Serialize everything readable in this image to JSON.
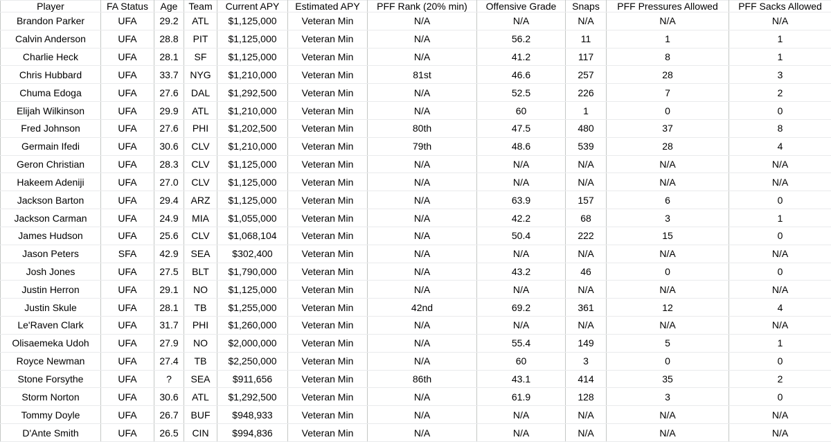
{
  "table": {
    "columns": [
      "Player",
      "FA Status",
      "Age",
      "Team",
      "Current APY",
      "Estimated APY",
      "PFF Rank (20% min)",
      "Offensive Grade",
      "Snaps",
      "PFF Pressures Allowed",
      "PFF Sacks Allowed"
    ],
    "rows": [
      [
        "Brandon Parker",
        "UFA",
        "29.2",
        "ATL",
        "$1,125,000",
        "Veteran Min",
        "N/A",
        "N/A",
        "N/A",
        "N/A",
        "N/A"
      ],
      [
        "Calvin Anderson",
        "UFA",
        "28.8",
        "PIT",
        "$1,125,000",
        "Veteran Min",
        "N/A",
        "56.2",
        "11",
        "1",
        "1"
      ],
      [
        "Charlie Heck",
        "UFA",
        "28.1",
        "SF",
        "$1,125,000",
        "Veteran Min",
        "N/A",
        "41.2",
        "117",
        "8",
        "1"
      ],
      [
        "Chris Hubbard",
        "UFA",
        "33.7",
        "NYG",
        "$1,210,000",
        "Veteran Min",
        "81st",
        "46.6",
        "257",
        "28",
        "3"
      ],
      [
        "Chuma Edoga",
        "UFA",
        "27.6",
        "DAL",
        "$1,292,500",
        "Veteran Min",
        "N/A",
        "52.5",
        "226",
        "7",
        "2"
      ],
      [
        "Elijah Wilkinson",
        "UFA",
        "29.9",
        "ATL",
        "$1,210,000",
        "Veteran Min",
        "N/A",
        "60",
        "1",
        "0",
        "0"
      ],
      [
        "Fred Johnson",
        "UFA",
        "27.6",
        "PHI",
        "$1,202,500",
        "Veteran Min",
        "80th",
        "47.5",
        "480",
        "37",
        "8"
      ],
      [
        "Germain Ifedi",
        "UFA",
        "30.6",
        "CLV",
        "$1,210,000",
        "Veteran Min",
        "79th",
        "48.6",
        "539",
        "28",
        "4"
      ],
      [
        "Geron Christian",
        "UFA",
        "28.3",
        "CLV",
        "$1,125,000",
        "Veteran Min",
        "N/A",
        "N/A",
        "N/A",
        "N/A",
        "N/A"
      ],
      [
        "Hakeem Adeniji",
        "UFA",
        "27.0",
        "CLV",
        "$1,125,000",
        "Veteran Min",
        "N/A",
        "N/A",
        "N/A",
        "N/A",
        "N/A"
      ],
      [
        "Jackson Barton",
        "UFA",
        "29.4",
        "ARZ",
        "$1,125,000",
        "Veteran Min",
        "N/A",
        "63.9",
        "157",
        "6",
        "0"
      ],
      [
        "Jackson Carman",
        "UFA",
        "24.9",
        "MIA",
        "$1,055,000",
        "Veteran Min",
        "N/A",
        "42.2",
        "68",
        "3",
        "1"
      ],
      [
        "James Hudson",
        "UFA",
        "25.6",
        "CLV",
        "$1,068,104",
        "Veteran Min",
        "N/A",
        "50.4",
        "222",
        "15",
        "0"
      ],
      [
        "Jason Peters",
        "SFA",
        "42.9",
        "SEA",
        "$302,400",
        "Veteran Min",
        "N/A",
        "N/A",
        "N/A",
        "N/A",
        "N/A"
      ],
      [
        "Josh Jones",
        "UFA",
        "27.5",
        "BLT",
        "$1,790,000",
        "Veteran Min",
        "N/A",
        "43.2",
        "46",
        "0",
        "0"
      ],
      [
        "Justin Herron",
        "UFA",
        "29.1",
        "NO",
        "$1,125,000",
        "Veteran Min",
        "N/A",
        "N/A",
        "N/A",
        "N/A",
        "N/A"
      ],
      [
        "Justin Skule",
        "UFA",
        "28.1",
        "TB",
        "$1,255,000",
        "Veteran Min",
        "42nd",
        "69.2",
        "361",
        "12",
        "4"
      ],
      [
        "Le'Raven Clark",
        "UFA",
        "31.7",
        "PHI",
        "$1,260,000",
        "Veteran Min",
        "N/A",
        "N/A",
        "N/A",
        "N/A",
        "N/A"
      ],
      [
        "Olisaemeka Udoh",
        "UFA",
        "27.9",
        "NO",
        "$2,000,000",
        "Veteran Min",
        "N/A",
        "55.4",
        "149",
        "5",
        "1"
      ],
      [
        "Royce Newman",
        "UFA",
        "27.4",
        "TB",
        "$2,250,000",
        "Veteran Min",
        "N/A",
        "60",
        "3",
        "0",
        "0"
      ],
      [
        "Stone Forsythe",
        "UFA",
        "?",
        "SEA",
        "$911,656",
        "Veteran Min",
        "86th",
        "43.1",
        "414",
        "35",
        "2"
      ],
      [
        "Storm Norton",
        "UFA",
        "30.6",
        "ATL",
        "$1,292,500",
        "Veteran Min",
        "N/A",
        "61.9",
        "128",
        "3",
        "0"
      ],
      [
        "Tommy Doyle",
        "UFA",
        "26.7",
        "BUF",
        "$948,933",
        "Veteran Min",
        "N/A",
        "N/A",
        "N/A",
        "N/A",
        "N/A"
      ],
      [
        "D'Ante Smith",
        "UFA",
        "26.5",
        "CIN",
        "$994,836",
        "Veteran Min",
        "N/A",
        "N/A",
        "N/A",
        "N/A",
        "N/A"
      ]
    ]
  },
  "colors": {
    "background": "#ffffff",
    "text": "#000000",
    "grid_vertical": "#c4c7c5",
    "grid_horizontal": "#e9eaec"
  }
}
